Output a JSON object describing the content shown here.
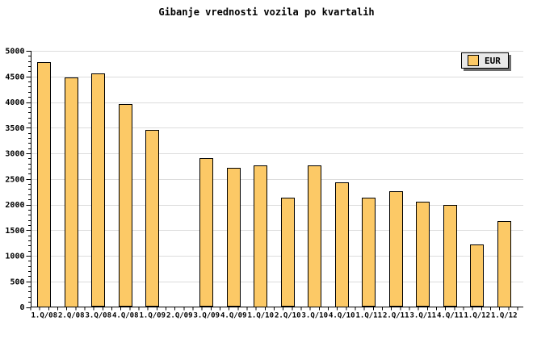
{
  "title": "Gibanje vrednosti vozila po kvartalih",
  "legend": {
    "label": "EUR"
  },
  "colors": {
    "bar_fill": "#FCC966",
    "bar_border": "#000000",
    "grid": "#DCDCDC",
    "axis": "#000000",
    "legend_bg": "#E9E9E9",
    "legend_shadow": "#6E6E6E",
    "background": "#FFFFFF"
  },
  "chart_data": {
    "type": "bar",
    "title": "Gibanje vrednosti vozila po kvartalih",
    "series_name": "EUR",
    "categories": [
      "1.Q/08",
      "2.Q/08",
      "3.Q/08",
      "4.Q/08",
      "1.Q/09",
      "2.Q/09",
      "3.Q/09",
      "4.Q/09",
      "1.Q/10",
      "2.Q/10",
      "3.Q/10",
      "4.Q/10",
      "1.Q/11",
      "2.Q/11",
      "3.Q/11",
      "4.Q/11",
      "1.Q/12",
      "1.Q/12"
    ],
    "values": [
      4785,
      4485,
      4555,
      3955,
      3450,
      null,
      2900,
      2715,
      2770,
      2130,
      2770,
      2440,
      2130,
      2255,
      2050,
      1990,
      1220,
      1680
    ],
    "ylim": [
      0,
      5000
    ],
    "ytick_step": 500,
    "ytick_labels": [
      "0",
      "500",
      "1000",
      "1500",
      "2000",
      "2500",
      "3000",
      "3500",
      "4000",
      "4500",
      "5000"
    ],
    "y_minor_step": 100,
    "grid": true,
    "gridlines_horizontal_only": true,
    "legend_position": "top-right",
    "xlabel": "",
    "ylabel": "",
    "missing_categories": [
      "2.Q/09"
    ]
  }
}
